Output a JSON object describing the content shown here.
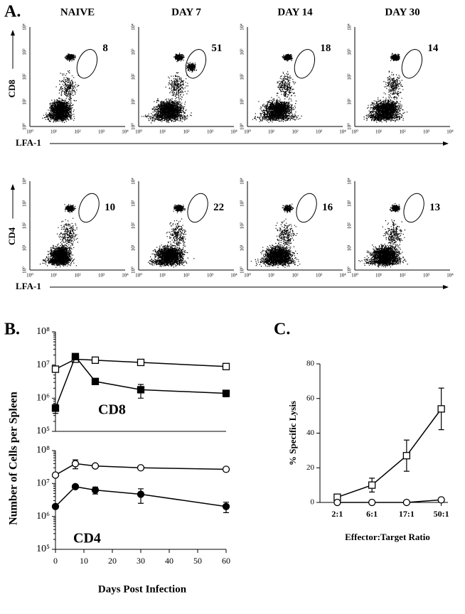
{
  "panel_a": {
    "label": "A.",
    "columns": [
      "NAIVE",
      "DAY 7",
      "DAY 14",
      "DAY 30"
    ],
    "axis_ticks": [
      "10⁰",
      "10¹",
      "10²",
      "10³",
      "10⁴"
    ],
    "rows": [
      {
        "y_label": "CD8",
        "x_label": "LFA-1",
        "gates": [
          8,
          51,
          18,
          14
        ]
      },
      {
        "y_label": "CD4",
        "x_label": "LFA-1",
        "gates": [
          10,
          22,
          16,
          13
        ]
      }
    ]
  },
  "chart_data": [
    {
      "type": "line",
      "panel_label": "B.",
      "ylabel": "Number of Cells per Spleen",
      "annotation": "CD8",
      "x": [
        0,
        7,
        14,
        30,
        60
      ],
      "xlim": [
        0,
        60
      ],
      "log_y": true,
      "ylim": [
        100000,
        100000000
      ],
      "yticks": [
        {
          "value": 100000,
          "label": "10⁵"
        },
        {
          "value": 1000000,
          "label": "10⁶"
        },
        {
          "value": 10000000,
          "label": "10⁷"
        },
        {
          "value": 100000000,
          "label": "10⁸"
        }
      ],
      "series": [
        {
          "color": "#000",
          "marker": "square",
          "filled": false,
          "values": [
            7500000,
            15000000,
            14000000,
            12000000,
            9000000
          ],
          "errors": [
            null,
            null,
            null,
            2000000,
            1500000
          ]
        },
        {
          "color": "#000",
          "marker": "square",
          "filled": true,
          "values": [
            500000,
            18000000,
            3200000,
            1800000,
            1400000
          ],
          "errors": [
            150000,
            null,
            null,
            800000,
            300000
          ]
        }
      ]
    },
    {
      "type": "line",
      "xlabel": "Days Post Infection",
      "annotation": "CD4",
      "x": [
        0,
        7,
        14,
        30,
        60
      ],
      "xlim": [
        0,
        60
      ],
      "xticks": [
        0,
        10,
        20,
        30,
        40,
        50,
        60
      ],
      "log_y": true,
      "ylim": [
        100000,
        100000000
      ],
      "yticks": [
        {
          "value": 100000,
          "label": "10⁵"
        },
        {
          "value": 1000000,
          "label": "10⁶"
        },
        {
          "value": 10000000,
          "label": "10⁷"
        },
        {
          "value": 100000000,
          "label": "10⁸"
        }
      ],
      "series": [
        {
          "color": "#000",
          "marker": "circle",
          "filled": false,
          "values": [
            18000000,
            40000000,
            34000000,
            30000000,
            27000000
          ],
          "errors": [
            null,
            12000000,
            null,
            null,
            null
          ]
        },
        {
          "color": "#000",
          "marker": "circle",
          "filled": true,
          "values": [
            2000000,
            8000000,
            6300000,
            4700000,
            2000000
          ],
          "errors": [
            null,
            null,
            1500000,
            2200000,
            700000
          ]
        }
      ]
    },
    {
      "type": "line",
      "panel_label": "C.",
      "ylabel": "% Specific Lysis",
      "xlabel": "Effector:Target Ratio",
      "categories": [
        "2:1",
        "6:1",
        "17:1",
        "50:1"
      ],
      "ylim": [
        0,
        80
      ],
      "yticks": [
        0,
        20,
        40,
        60,
        80
      ],
      "series": [
        {
          "color": "#000",
          "marker": "square",
          "filled": false,
          "values": [
            3,
            10,
            27,
            54
          ],
          "errors": [
            null,
            4,
            9,
            12
          ]
        },
        {
          "color": "#000",
          "marker": "circle",
          "filled": false,
          "values": [
            0,
            0,
            0,
            1.5
          ],
          "errors": [
            null,
            null,
            null,
            null
          ]
        }
      ]
    }
  ]
}
